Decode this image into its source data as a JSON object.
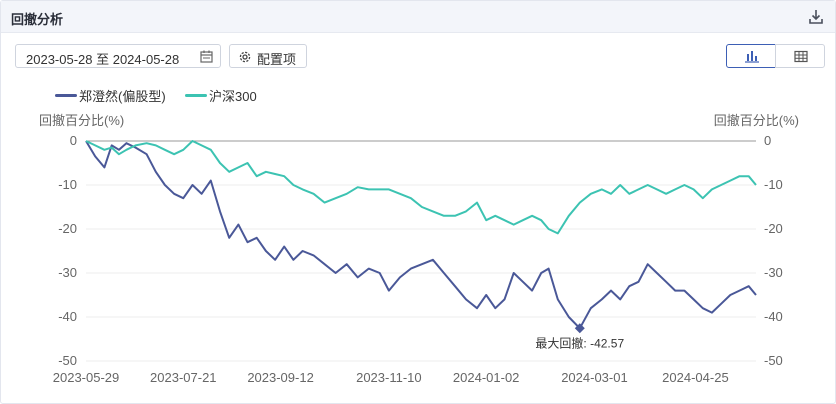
{
  "header": {
    "title": "回撤分析",
    "download_icon": "download-icon"
  },
  "toolbar": {
    "date_range": "2023-05-28 至 2024-05-28",
    "calendar_icon": "calendar-icon",
    "config_label": "配置项",
    "config_icon": "gear-icon",
    "view_chart_icon": "bar-chart-icon",
    "view_table_icon": "table-icon"
  },
  "colors": {
    "fund": "#4a5898",
    "index": "#3cc3b2",
    "accent": "#3d5fb5",
    "zero_line": "#999999",
    "grid": "#eeeeee"
  },
  "chart_data": {
    "type": "line",
    "title": "",
    "ylabel_left": "回撤百分比(%)",
    "ylabel_right": "回撤百分比(%)",
    "ylim": [
      -50,
      0
    ],
    "y_ticks": [
      0,
      -10,
      -20,
      -30,
      -40,
      -50
    ],
    "x_ticks": [
      "2023-05-29",
      "2023-07-21",
      "2023-09-12",
      "2023-11-10",
      "2024-01-02",
      "2024-03-01",
      "2024-04-25"
    ],
    "x_range": [
      "2023-05-29",
      "2024-05-28"
    ],
    "grid": true,
    "legend_position": "top-left",
    "series": [
      {
        "name": "郑澄然(偏股型)",
        "color": "#4a5898",
        "x": [
          "2023-05-29",
          "2023-06-03",
          "2023-06-08",
          "2023-06-12",
          "2023-06-16",
          "2023-06-20",
          "2023-06-25",
          "2023-07-01",
          "2023-07-06",
          "2023-07-11",
          "2023-07-16",
          "2023-07-21",
          "2023-07-26",
          "2023-07-31",
          "2023-08-05",
          "2023-08-10",
          "2023-08-15",
          "2023-08-20",
          "2023-08-25",
          "2023-08-30",
          "2023-09-04",
          "2023-09-09",
          "2023-09-14",
          "2023-09-19",
          "2023-09-24",
          "2023-09-30",
          "2023-10-06",
          "2023-10-12",
          "2023-10-18",
          "2023-10-24",
          "2023-10-30",
          "2023-11-05",
          "2023-11-10",
          "2023-11-16",
          "2023-11-22",
          "2023-11-28",
          "2023-12-04",
          "2023-12-10",
          "2023-12-16",
          "2023-12-22",
          "2023-12-28",
          "2024-01-02",
          "2024-01-07",
          "2024-01-12",
          "2024-01-17",
          "2024-01-22",
          "2024-01-27",
          "2024-02-01",
          "2024-02-05",
          "2024-02-10",
          "2024-02-16",
          "2024-02-22",
          "2024-02-28",
          "2024-03-05",
          "2024-03-10",
          "2024-03-15",
          "2024-03-20",
          "2024-03-25",
          "2024-03-30",
          "2024-04-04",
          "2024-04-09",
          "2024-04-14",
          "2024-04-19",
          "2024-04-24",
          "2024-04-29",
          "2024-05-04",
          "2024-05-09",
          "2024-05-14",
          "2024-05-19",
          "2024-05-24",
          "2024-05-28"
        ],
        "values": [
          0,
          -3.5,
          -6,
          -1,
          -2,
          -0.5,
          -1.5,
          -3,
          -7,
          -10,
          -12,
          -13,
          -10,
          -12,
          -9,
          -16,
          -22,
          -19,
          -23,
          -22,
          -25,
          -27,
          -24,
          -27,
          -25,
          -26,
          -28,
          -30,
          -28,
          -31,
          -29,
          -30,
          -34,
          -31,
          -29,
          -28,
          -27,
          -30,
          -33,
          -36,
          -38,
          -35,
          -38,
          -36,
          -30,
          -32,
          -34,
          -30,
          -29,
          -36,
          -40,
          -42.57,
          -38,
          -36,
          -34,
          -36,
          -33,
          -32,
          -28,
          -30,
          -32,
          -34,
          -34,
          -36,
          -38,
          -39,
          -37,
          -35,
          -34,
          -33,
          -35
        ]
      },
      {
        "name": "沪深300",
        "color": "#3cc3b2",
        "x": [
          "2023-05-29",
          "2023-06-03",
          "2023-06-08",
          "2023-06-12",
          "2023-06-16",
          "2023-06-20",
          "2023-06-25",
          "2023-07-01",
          "2023-07-06",
          "2023-07-11",
          "2023-07-16",
          "2023-07-21",
          "2023-07-26",
          "2023-07-31",
          "2023-08-05",
          "2023-08-10",
          "2023-08-15",
          "2023-08-20",
          "2023-08-25",
          "2023-08-30",
          "2023-09-04",
          "2023-09-09",
          "2023-09-14",
          "2023-09-19",
          "2023-09-24",
          "2023-09-30",
          "2023-10-06",
          "2023-10-12",
          "2023-10-18",
          "2023-10-24",
          "2023-10-30",
          "2023-11-05",
          "2023-11-10",
          "2023-11-16",
          "2023-11-22",
          "2023-11-28",
          "2023-12-04",
          "2023-12-10",
          "2023-12-16",
          "2023-12-22",
          "2023-12-28",
          "2024-01-02",
          "2024-01-07",
          "2024-01-12",
          "2024-01-17",
          "2024-01-22",
          "2024-01-27",
          "2024-02-01",
          "2024-02-05",
          "2024-02-10",
          "2024-02-16",
          "2024-02-22",
          "2024-02-28",
          "2024-03-05",
          "2024-03-10",
          "2024-03-15",
          "2024-03-20",
          "2024-03-25",
          "2024-03-30",
          "2024-04-04",
          "2024-04-09",
          "2024-04-14",
          "2024-04-19",
          "2024-04-24",
          "2024-04-29",
          "2024-05-04",
          "2024-05-09",
          "2024-05-14",
          "2024-05-19",
          "2024-05-24",
          "2024-05-28"
        ],
        "values": [
          0,
          -1,
          -2,
          -1.5,
          -3,
          -2,
          -1,
          -0.5,
          -1,
          -2,
          -3,
          -2,
          0,
          -1,
          -2,
          -5,
          -7,
          -6,
          -5,
          -8,
          -7,
          -7.5,
          -8,
          -10,
          -11,
          -12,
          -14,
          -13,
          -12,
          -10.5,
          -11,
          -11,
          -11,
          -12,
          -13,
          -15,
          -16,
          -17,
          -17,
          -16,
          -14,
          -18,
          -17,
          -18,
          -19,
          -18,
          -17,
          -18,
          -20,
          -21,
          -17,
          -14,
          -12,
          -11,
          -12,
          -10,
          -12,
          -11,
          -10,
          -11,
          -12,
          -11,
          -10,
          -11,
          -13,
          -11,
          -10,
          -9,
          -8,
          -8,
          -10
        ]
      }
    ],
    "annotations": [
      {
        "label": "最大回撤: -42.57",
        "x": "2024-02-22",
        "y": -42.57,
        "series": "郑澄然(偏股型)"
      }
    ]
  }
}
